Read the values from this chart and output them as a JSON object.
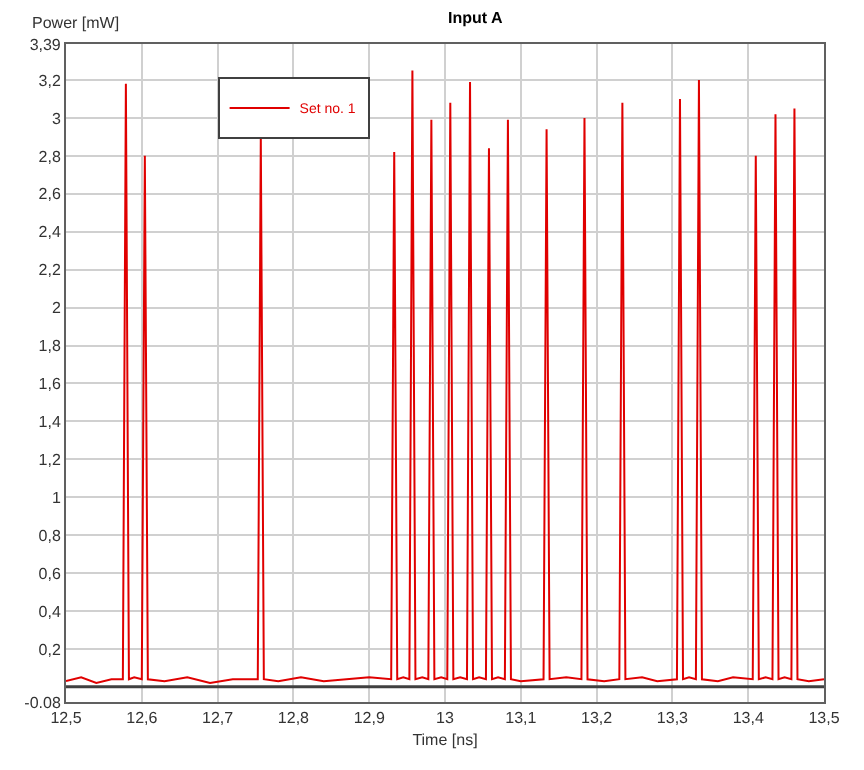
{
  "chart_data": {
    "type": "line",
    "title": "Input A",
    "xlabel": "Time [ns]",
    "ylabel": "Power [mW]",
    "xlim": [
      12.5,
      13.5
    ],
    "xticks": [
      {
        "value": 12.5,
        "label": "12,5"
      },
      {
        "value": 12.6,
        "label": "12,6"
      },
      {
        "value": 12.7,
        "label": "12,7"
      },
      {
        "value": 12.8,
        "label": "12,8"
      },
      {
        "value": 12.9,
        "label": "12,9"
      },
      13,
      {
        "value": 13.1,
        "label": "13,1"
      },
      {
        "value": 13.2,
        "label": "13,2"
      },
      {
        "value": 13.3,
        "label": "13,3"
      },
      {
        "value": 13.4,
        "label": "13,4"
      },
      {
        "value": 13.5,
        "label": "13,5"
      }
    ],
    "ylim": [
      -0.08,
      3.39
    ],
    "yticks": [
      {
        "value": -0.08,
        "label": "-0.08"
      },
      {
        "value": 0.2,
        "label": "0,2"
      },
      {
        "value": 0.4,
        "label": "0,4"
      },
      {
        "value": 0.6,
        "label": "0,6"
      },
      {
        "value": 0.8,
        "label": "0,8"
      },
      1,
      {
        "value": 1.2,
        "label": "1,2"
      },
      {
        "value": 1.4,
        "label": "1,4"
      },
      {
        "value": 1.6,
        "label": "1,6"
      },
      {
        "value": 1.8,
        "label": "1,8"
      },
      2,
      {
        "value": 2.2,
        "label": "2,2"
      },
      {
        "value": 2.4,
        "label": "2,4"
      },
      {
        "value": 2.6,
        "label": "2,6"
      },
      {
        "value": 2.8,
        "label": "2,8"
      },
      3,
      {
        "value": 3.2,
        "label": "3,2"
      },
      {
        "value": 3.39,
        "label": "3,39"
      }
    ],
    "grid": true,
    "legend": "top left",
    "line_style": "solid",
    "ref_lines": [
      {
        "axis": "y",
        "value": 0,
        "color": "#404040"
      }
    ],
    "series": [
      {
        "name": "Set no. 1",
        "color": "#e00000",
        "x": [
          12.5,
          12.52,
          12.54,
          12.56,
          12.575,
          12.579,
          12.583,
          12.59,
          12.6,
          12.604,
          12.608,
          12.63,
          12.66,
          12.69,
          12.72,
          12.753,
          12.757,
          12.761,
          12.78,
          12.81,
          12.84,
          12.87,
          12.9,
          12.929,
          12.933,
          12.937,
          12.945,
          12.953,
          12.957,
          12.961,
          12.97,
          12.978,
          12.982,
          12.986,
          12.995,
          13.003,
          13.007,
          13.011,
          13.02,
          13.029,
          13.033,
          13.037,
          13.045,
          13.054,
          13.058,
          13.062,
          13.07,
          13.079,
          13.083,
          13.087,
          13.1,
          13.13,
          13.134,
          13.138,
          13.16,
          13.18,
          13.184,
          13.188,
          13.21,
          13.23,
          13.234,
          13.238,
          13.26,
          13.28,
          13.306,
          13.31,
          13.314,
          13.322,
          13.331,
          13.335,
          13.339,
          13.36,
          13.38,
          13.406,
          13.41,
          13.414,
          13.423,
          13.432,
          13.436,
          13.44,
          13.448,
          13.457,
          13.461,
          13.465,
          13.48,
          13.5
        ],
        "values": [
          0.03,
          0.05,
          0.02,
          0.04,
          0.04,
          3.18,
          0.04,
          0.05,
          0.04,
          2.8,
          0.04,
          0.03,
          0.05,
          0.02,
          0.04,
          0.04,
          2.9,
          0.04,
          0.03,
          0.05,
          0.03,
          0.04,
          0.05,
          0.04,
          2.82,
          0.04,
          0.05,
          0.04,
          3.25,
          0.04,
          0.05,
          0.04,
          2.99,
          0.04,
          0.05,
          0.04,
          3.08,
          0.04,
          0.05,
          0.04,
          3.19,
          0.04,
          0.05,
          0.04,
          2.84,
          0.04,
          0.05,
          0.04,
          2.99,
          0.04,
          0.03,
          0.04,
          2.94,
          0.04,
          0.05,
          0.04,
          3.0,
          0.04,
          0.03,
          0.04,
          3.08,
          0.04,
          0.05,
          0.03,
          0.04,
          3.1,
          0.04,
          0.05,
          0.04,
          3.2,
          0.04,
          0.03,
          0.05,
          0.04,
          2.8,
          0.04,
          0.05,
          0.04,
          3.02,
          0.04,
          0.05,
          0.04,
          3.05,
          0.04,
          0.03,
          0.04
        ]
      }
    ]
  }
}
